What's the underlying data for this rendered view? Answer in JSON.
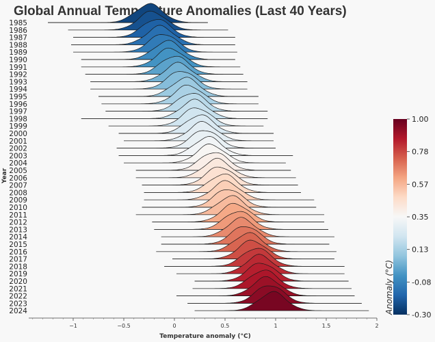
{
  "chart_data": {
    "type": "ridgeline",
    "title": "Global Annual Temperature Anomalies (Last 40 Years)",
    "xlabel": "Temperature anomaly (°C)",
    "ylabel": "Year",
    "xlim": [
      -1.5,
      2.0
    ],
    "xticks": [
      "−1",
      "−0.5",
      "0",
      "0.5",
      "1",
      "1.5",
      "2"
    ],
    "xtick_values": [
      -1,
      -0.5,
      0,
      0.5,
      1,
      1.5,
      2
    ],
    "years": [
      "1985",
      "1986",
      "1987",
      "1988",
      "1989",
      "1990",
      "1991",
      "1992",
      "1993",
      "1994",
      "1995",
      "1996",
      "1997",
      "1998",
      "1999",
      "2000",
      "2001",
      "2002",
      "2003",
      "2004",
      "2005",
      "2006",
      "2007",
      "2008",
      "2009",
      "2010",
      "2011",
      "2012",
      "2013",
      "2014",
      "2015",
      "2016",
      "2017",
      "2018",
      "2019",
      "2020",
      "2021",
      "2022",
      "2023",
      "2024"
    ],
    "means": [
      -0.25,
      -0.22,
      -0.18,
      -0.14,
      -0.11,
      -0.07,
      -0.04,
      0.0,
      0.04,
      0.07,
      0.11,
      0.14,
      0.17,
      0.2,
      0.22,
      0.25,
      0.28,
      0.3,
      0.33,
      0.36,
      0.39,
      0.42,
      0.45,
      0.48,
      0.51,
      0.53,
      0.56,
      0.6,
      0.63,
      0.66,
      0.7,
      0.73,
      0.77,
      0.81,
      0.84,
      0.86,
      0.88,
      0.91,
      0.94,
      0.97
    ],
    "spread": [
      [
        -1.25,
        0.33
      ],
      [
        -1.05,
        0.53
      ],
      [
        -1.0,
        0.6
      ],
      [
        -1.02,
        0.6
      ],
      [
        -1.0,
        0.62
      ],
      [
        -0.92,
        0.6
      ],
      [
        -0.92,
        0.65
      ],
      [
        -0.88,
        0.68
      ],
      [
        -0.83,
        0.72
      ],
      [
        -0.83,
        0.72
      ],
      [
        -0.75,
        0.83
      ],
      [
        -0.72,
        0.83
      ],
      [
        -0.68,
        0.92
      ],
      [
        -0.92,
        0.92
      ],
      [
        -0.65,
        0.88
      ],
      [
        -0.55,
        0.98
      ],
      [
        -0.5,
        0.98
      ],
      [
        -0.57,
        1.0
      ],
      [
        -0.55,
        1.17
      ],
      [
        -0.5,
        1.1
      ],
      [
        -0.38,
        1.15
      ],
      [
        -0.38,
        1.2
      ],
      [
        -0.32,
        1.22
      ],
      [
        -0.3,
        1.25
      ],
      [
        -0.3,
        1.38
      ],
      [
        -0.32,
        1.4
      ],
      [
        -0.38,
        1.48
      ],
      [
        -0.22,
        1.48
      ],
      [
        -0.2,
        1.52
      ],
      [
        -0.13,
        1.58
      ],
      [
        -0.13,
        1.53
      ],
      [
        -0.18,
        1.6
      ],
      [
        -0.02,
        1.58
      ],
      [
        -0.1,
        1.68
      ],
      [
        0.02,
        1.68
      ],
      [
        0.2,
        1.72
      ],
      [
        0.18,
        1.75
      ],
      [
        0.02,
        1.78
      ],
      [
        0.13,
        1.85
      ],
      [
        0.2,
        1.92
      ]
    ],
    "colorbar": {
      "label": "Anomaly (°C)",
      "ticks": [
        "1.00",
        "0.78",
        "0.57",
        "0.35",
        "0.13",
        "-0.08",
        "-0.30"
      ],
      "range": [
        -0.3,
        1.0
      ],
      "colors": [
        "#053061",
        "#2166ac",
        "#4393c3",
        "#92c5de",
        "#d1e5f0",
        "#f7f7f7",
        "#fddbc7",
        "#f4a582",
        "#d6604d",
        "#b2182b",
        "#67001f"
      ]
    }
  }
}
